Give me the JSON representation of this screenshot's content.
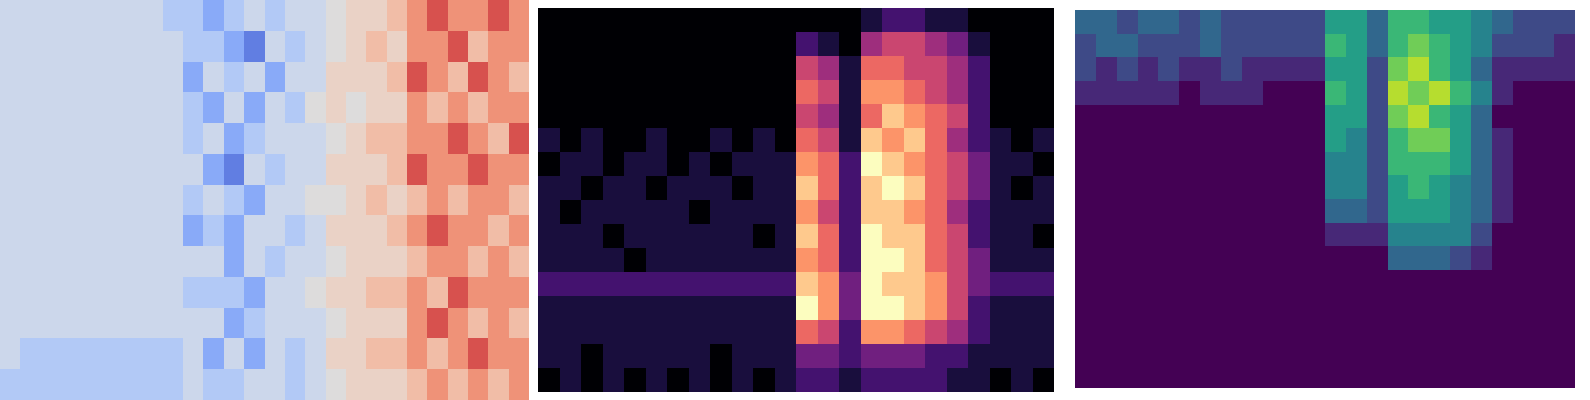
{
  "chart_data": [
    {
      "type": "heatmap",
      "color": "coolwarm",
      "zlim": [
        -5,
        5
      ],
      "tick_labels": false,
      "cells": [
        [
          -1,
          -1,
          -1,
          -1,
          -1,
          -1,
          -1,
          -1,
          -2,
          -2,
          -3,
          -2,
          -1,
          -2,
          -1,
          -1,
          0,
          1,
          1,
          2,
          3,
          4,
          3,
          3,
          4,
          3
        ],
        [
          -1,
          -1,
          -1,
          -1,
          -1,
          -1,
          -1,
          -1,
          -1,
          -2,
          -2,
          -3,
          -4,
          -1,
          -2,
          -1,
          0,
          1,
          2,
          1,
          3,
          3,
          4,
          2,
          3,
          3
        ],
        [
          -1,
          -1,
          -1,
          -1,
          -1,
          -1,
          -1,
          -1,
          -1,
          -3,
          -1,
          -2,
          -1,
          -3,
          -1,
          -1,
          1,
          1,
          1,
          2,
          4,
          3,
          2,
          4,
          3,
          2
        ],
        [
          -1,
          -1,
          -1,
          -1,
          -1,
          -1,
          -1,
          -1,
          -1,
          -2,
          -3,
          -1,
          -3,
          -1,
          -2,
          0,
          1,
          0,
          1,
          1,
          3,
          2,
          3,
          2,
          3,
          3
        ],
        [
          -1,
          -1,
          -1,
          -1,
          -1,
          -1,
          -1,
          -1,
          -1,
          -2,
          -1,
          -3,
          -2,
          -1,
          -1,
          -1,
          0,
          1,
          2,
          2,
          3,
          3,
          4,
          3,
          2,
          4
        ],
        [
          -1,
          -1,
          -1,
          -1,
          -1,
          -1,
          -1,
          -1,
          -1,
          -1,
          -3,
          -4,
          -1,
          -2,
          -1,
          -1,
          1,
          1,
          1,
          2,
          4,
          3,
          3,
          4,
          3,
          3
        ],
        [
          -1,
          -1,
          -1,
          -1,
          -1,
          -1,
          -1,
          -1,
          -1,
          -2,
          -1,
          -2,
          -3,
          -1,
          -1,
          0,
          0,
          1,
          2,
          1,
          2,
          3,
          2,
          3,
          3,
          2
        ],
        [
          -1,
          -1,
          -1,
          -1,
          -1,
          -1,
          -1,
          -1,
          -1,
          -3,
          -2,
          -3,
          -1,
          -1,
          -2,
          -1,
          1,
          1,
          1,
          2,
          3,
          4,
          3,
          3,
          2,
          3
        ],
        [
          -1,
          -1,
          -1,
          -1,
          -1,
          -1,
          -1,
          -1,
          -1,
          -1,
          -1,
          -3,
          -1,
          -2,
          -1,
          -1,
          0,
          1,
          1,
          1,
          2,
          3,
          3,
          2,
          3,
          2
        ],
        [
          -1,
          -1,
          -1,
          -1,
          -1,
          -1,
          -1,
          -1,
          -1,
          -2,
          -2,
          -2,
          -3,
          -1,
          -1,
          0,
          1,
          1,
          2,
          2,
          3,
          2,
          4,
          3,
          3,
          3
        ],
        [
          -1,
          -1,
          -1,
          -1,
          -1,
          -1,
          -1,
          -1,
          -1,
          -1,
          -1,
          -3,
          -2,
          -1,
          -1,
          -1,
          0,
          1,
          1,
          1,
          3,
          4,
          3,
          2,
          3,
          2
        ],
        [
          -1,
          -2,
          -2,
          -2,
          -2,
          -2,
          -2,
          -2,
          -2,
          -1,
          -3,
          -1,
          -3,
          -1,
          -2,
          -1,
          1,
          1,
          2,
          2,
          3,
          2,
          3,
          4,
          3,
          3
        ],
        [
          -2,
          -2,
          -2,
          -2,
          -2,
          -2,
          -2,
          -2,
          -2,
          -1,
          -2,
          -2,
          -1,
          -1,
          -2,
          -1,
          0,
          1,
          1,
          1,
          2,
          3,
          2,
          3,
          2,
          3
        ]
      ]
    },
    {
      "type": "heatmap",
      "color": "magma",
      "zlim": [
        0,
        9
      ],
      "tick_labels": false,
      "cells": [
        [
          0,
          0,
          0,
          0,
          0,
          0,
          0,
          0,
          0,
          0,
          0,
          0,
          0,
          0,
          0,
          1,
          2,
          2,
          1,
          1,
          0,
          0,
          0,
          0
        ],
        [
          0,
          0,
          0,
          0,
          0,
          0,
          0,
          0,
          0,
          0,
          0,
          0,
          2,
          1,
          0,
          4,
          5,
          5,
          4,
          3,
          1,
          0,
          0,
          0
        ],
        [
          0,
          0,
          0,
          0,
          0,
          0,
          0,
          0,
          0,
          0,
          0,
          0,
          5,
          4,
          1,
          6,
          6,
          5,
          5,
          4,
          2,
          0,
          0,
          0
        ],
        [
          0,
          0,
          0,
          0,
          0,
          0,
          0,
          0,
          0,
          0,
          0,
          0,
          6,
          5,
          1,
          7,
          7,
          6,
          5,
          4,
          2,
          0,
          0,
          0
        ],
        [
          0,
          0,
          0,
          0,
          0,
          0,
          0,
          0,
          0,
          0,
          0,
          0,
          5,
          4,
          1,
          6,
          8,
          7,
          6,
          5,
          2,
          0,
          0,
          0
        ],
        [
          1,
          0,
          1,
          0,
          0,
          1,
          0,
          0,
          1,
          0,
          1,
          0,
          6,
          5,
          1,
          8,
          7,
          8,
          6,
          4,
          2,
          1,
          0,
          1
        ],
        [
          0,
          1,
          1,
          0,
          1,
          1,
          0,
          1,
          0,
          1,
          1,
          1,
          7,
          6,
          2,
          9,
          8,
          7,
          6,
          5,
          3,
          1,
          1,
          0
        ],
        [
          1,
          1,
          0,
          1,
          1,
          0,
          1,
          1,
          1,
          0,
          1,
          1,
          8,
          6,
          2,
          8,
          9,
          8,
          6,
          5,
          3,
          1,
          0,
          1
        ],
        [
          1,
          0,
          1,
          1,
          1,
          1,
          1,
          0,
          1,
          1,
          1,
          1,
          7,
          5,
          2,
          8,
          8,
          7,
          6,
          4,
          2,
          1,
          1,
          1
        ],
        [
          1,
          1,
          1,
          0,
          1,
          1,
          1,
          1,
          1,
          1,
          0,
          1,
          8,
          6,
          2,
          9,
          8,
          8,
          6,
          5,
          2,
          1,
          1,
          0
        ],
        [
          1,
          1,
          1,
          1,
          0,
          1,
          1,
          1,
          1,
          1,
          1,
          1,
          7,
          6,
          2,
          9,
          9,
          8,
          6,
          5,
          3,
          1,
          1,
          1
        ],
        [
          2,
          2,
          2,
          2,
          2,
          2,
          2,
          2,
          2,
          2,
          2,
          2,
          8,
          7,
          3,
          9,
          8,
          8,
          7,
          5,
          3,
          2,
          2,
          2
        ],
        [
          1,
          1,
          1,
          1,
          1,
          1,
          1,
          1,
          1,
          1,
          1,
          1,
          9,
          7,
          3,
          9,
          9,
          8,
          7,
          5,
          2,
          1,
          1,
          1
        ],
        [
          1,
          1,
          1,
          1,
          1,
          1,
          1,
          1,
          1,
          1,
          1,
          1,
          6,
          5,
          2,
          7,
          7,
          6,
          5,
          4,
          2,
          1,
          1,
          1
        ],
        [
          1,
          1,
          0,
          1,
          1,
          1,
          1,
          1,
          0,
          1,
          1,
          1,
          3,
          3,
          2,
          3,
          3,
          3,
          2,
          2,
          1,
          1,
          1,
          1
        ],
        [
          0,
          1,
          0,
          1,
          0,
          1,
          0,
          1,
          0,
          1,
          0,
          1,
          2,
          2,
          1,
          2,
          2,
          2,
          2,
          1,
          1,
          0,
          1,
          0
        ]
      ]
    },
    {
      "type": "heatmap",
      "color": "viridis",
      "zlim": [
        0,
        9
      ],
      "tick_labels": false,
      "cells": [
        [
          3,
          3,
          2,
          3,
          3,
          2,
          3,
          2,
          2,
          2,
          2,
          2,
          5,
          5,
          3,
          6,
          6,
          5,
          5,
          4,
          3,
          2,
          2,
          2
        ],
        [
          2,
          3,
          3,
          2,
          2,
          2,
          3,
          2,
          2,
          2,
          2,
          2,
          6,
          5,
          3,
          6,
          7,
          6,
          5,
          4,
          2,
          2,
          2,
          1
        ],
        [
          2,
          1,
          2,
          1,
          2,
          1,
          1,
          2,
          1,
          1,
          1,
          1,
          5,
          5,
          2,
          7,
          8,
          6,
          5,
          3,
          1,
          1,
          1,
          1
        ],
        [
          1,
          1,
          1,
          1,
          1,
          0,
          1,
          1,
          1,
          0,
          0,
          0,
          6,
          5,
          2,
          8,
          7,
          8,
          6,
          4,
          1,
          0,
          0,
          0
        ],
        [
          0,
          0,
          0,
          0,
          0,
          0,
          0,
          0,
          0,
          0,
          0,
          0,
          5,
          5,
          2,
          7,
          8,
          6,
          5,
          3,
          0,
          0,
          0,
          0
        ],
        [
          0,
          0,
          0,
          0,
          0,
          0,
          0,
          0,
          0,
          0,
          0,
          0,
          5,
          4,
          2,
          6,
          7,
          7,
          5,
          3,
          1,
          0,
          0,
          0
        ],
        [
          0,
          0,
          0,
          0,
          0,
          0,
          0,
          0,
          0,
          0,
          0,
          0,
          4,
          4,
          2,
          6,
          6,
          6,
          5,
          3,
          1,
          0,
          0,
          0
        ],
        [
          0,
          0,
          0,
          0,
          0,
          0,
          0,
          0,
          0,
          0,
          0,
          0,
          4,
          4,
          2,
          5,
          6,
          5,
          4,
          3,
          1,
          0,
          0,
          0
        ],
        [
          0,
          0,
          0,
          0,
          0,
          0,
          0,
          0,
          0,
          0,
          0,
          0,
          3,
          3,
          2,
          5,
          5,
          5,
          4,
          3,
          1,
          0,
          0,
          0
        ],
        [
          0,
          0,
          0,
          0,
          0,
          0,
          0,
          0,
          0,
          0,
          0,
          0,
          1,
          1,
          1,
          4,
          4,
          4,
          4,
          2,
          0,
          0,
          0,
          0
        ],
        [
          0,
          0,
          0,
          0,
          0,
          0,
          0,
          0,
          0,
          0,
          0,
          0,
          0,
          0,
          0,
          3,
          3,
          3,
          2,
          1,
          0,
          0,
          0,
          0
        ],
        [
          0,
          0,
          0,
          0,
          0,
          0,
          0,
          0,
          0,
          0,
          0,
          0,
          0,
          0,
          0,
          0,
          0,
          0,
          0,
          0,
          0,
          0,
          0,
          0
        ],
        [
          0,
          0,
          0,
          0,
          0,
          0,
          0,
          0,
          0,
          0,
          0,
          0,
          0,
          0,
          0,
          0,
          0,
          0,
          0,
          0,
          0,
          0,
          0,
          0
        ],
        [
          0,
          0,
          0,
          0,
          0,
          0,
          0,
          0,
          0,
          0,
          0,
          0,
          0,
          0,
          0,
          0,
          0,
          0,
          0,
          0,
          0,
          0,
          0,
          0
        ],
        [
          0,
          0,
          0,
          0,
          0,
          0,
          0,
          0,
          0,
          0,
          0,
          0,
          0,
          0,
          0,
          0,
          0,
          0,
          0,
          0,
          0,
          0,
          0,
          0
        ],
        [
          0,
          0,
          0,
          0,
          0,
          0,
          0,
          0,
          0,
          0,
          0,
          0,
          0,
          0,
          0,
          0,
          0,
          0,
          0,
          0,
          0,
          0,
          0,
          0
        ]
      ]
    }
  ]
}
